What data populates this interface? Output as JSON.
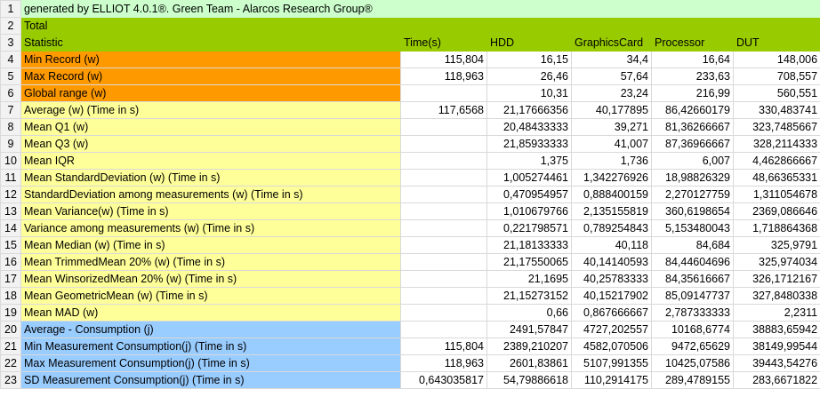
{
  "header_row": "generated by ELLIOT 4.0.1®. Green Team - Alarcos Research Group®",
  "total_label": "Total",
  "columns": [
    "Statistic",
    "Time(s)",
    "HDD",
    "GraphicsCard",
    "Processor",
    "DUT"
  ],
  "rows": [
    {
      "label": "Min Record (w)",
      "color": "orange",
      "values": [
        "115,804",
        "16,15",
        "34,4",
        "16,64",
        "148,006"
      ]
    },
    {
      "label": "Max Record (w)",
      "color": "orange",
      "values": [
        "118,963",
        "26,46",
        "57,64",
        "233,63",
        "708,557"
      ]
    },
    {
      "label": "Global range (w)",
      "color": "orange",
      "values": [
        "",
        "10,31",
        "23,24",
        "216,99",
        "560,551"
      ]
    },
    {
      "label": "Average (w) (Time in s)",
      "color": "yellow",
      "values": [
        "117,6568",
        "21,17666356",
        "40,177895",
        "86,42660179",
        "330,483741"
      ]
    },
    {
      "label": "Mean Q1 (w)",
      "color": "yellow",
      "values": [
        "",
        "20,48433333",
        "39,271",
        "81,36266667",
        "323,7485667"
      ]
    },
    {
      "label": "Mean Q3 (w)",
      "color": "yellow",
      "values": [
        "",
        "21,85933333",
        "41,007",
        "87,36966667",
        "328,2114333"
      ]
    },
    {
      "label": "Mean IQR",
      "color": "yellow",
      "values": [
        "",
        "1,375",
        "1,736",
        "6,007",
        "4,462866667"
      ]
    },
    {
      "label": "Mean StandardDeviation (w) (Time in s)",
      "color": "yellow",
      "values": [
        "",
        "1,005274461",
        "1,342276926",
        "18,98826329",
        "48,66365331"
      ]
    },
    {
      "label": "StandardDeviation among measurements (w) (Time in s)",
      "color": "yellow",
      "values": [
        "",
        "0,470954957",
        "0,888400159",
        "2,270127759",
        "1,311054678"
      ]
    },
    {
      "label": "Mean Variance(w) (Time in s)",
      "color": "yellow",
      "values": [
        "",
        "1,010679766",
        "2,135155819",
        "360,6198654",
        "2369,086646"
      ]
    },
    {
      "label": "Variance among measurements (w) (Time in s)",
      "color": "yellow",
      "values": [
        "",
        "0,221798571",
        "0,789254843",
        "5,153480043",
        "1,718864368"
      ]
    },
    {
      "label": "Mean Median (w) (Time in s)",
      "color": "yellow",
      "values": [
        "",
        "21,18133333",
        "40,118",
        "84,684",
        "325,9791"
      ]
    },
    {
      "label": "Mean TrimmedMean 20% (w) (Time in s)",
      "color": "yellow",
      "values": [
        "",
        "21,17550065",
        "40,14140593",
        "84,44604696",
        "325,974034"
      ]
    },
    {
      "label": "Mean WinsorizedMean 20% (w) (Time in s)",
      "color": "yellow",
      "values": [
        "",
        "21,1695",
        "40,25783333",
        "84,35616667",
        "326,1712167"
      ]
    },
    {
      "label": "Mean GeometricMean (w) (Time in s)",
      "color": "yellow",
      "values": [
        "",
        "21,15273152",
        "40,15217902",
        "85,09147737",
        "327,8480338"
      ]
    },
    {
      "label": "Mean MAD (w)",
      "color": "yellow",
      "values": [
        "",
        "0,66",
        "0,867666667",
        "2,787333333",
        "2,2311"
      ]
    },
    {
      "label": "Average - Consumption (j)",
      "color": "blue",
      "values": [
        "",
        "2491,57847",
        "4727,202557",
        "10168,6774",
        "38883,65942"
      ]
    },
    {
      "label": "Min Measurement Consumption(j) (Time in s)",
      "color": "blue",
      "values": [
        "115,804",
        "2389,210207",
        "4582,070506",
        "9472,65629",
        "38149,99544"
      ]
    },
    {
      "label": "Max Measurement Consumption(j) (Time in s)",
      "color": "blue",
      "values": [
        "118,963",
        "2601,83861",
        "5107,991355",
        "10425,07586",
        "39443,54276"
      ]
    },
    {
      "label": "SD Measurement Consumption(j) (Time in s)",
      "color": "blue",
      "values": [
        "0,643035817",
        "54,79886618",
        "110,2914175",
        "289,4789155",
        "283,6671822"
      ]
    }
  ]
}
